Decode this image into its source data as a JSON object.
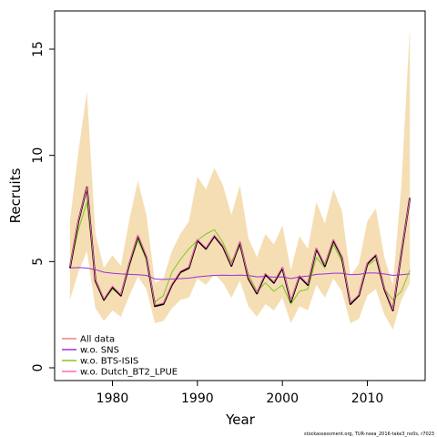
{
  "chart_data": {
    "type": "line",
    "xlabel": "Year",
    "ylabel": "Recruits",
    "xlim": [
      1973.2,
      2016.8
    ],
    "ylim": [
      -0.6,
      16.8
    ],
    "xticks": [
      1980,
      1990,
      2000,
      2010
    ],
    "yticks": [
      0,
      5,
      10,
      15
    ],
    "legend_position": "bottom-left",
    "footnote": "stockassessment.org, TUR-nsea_2016-take3_no0s, r7023",
    "colors": {
      "band": "#f5deb3",
      "all_data": "#000000",
      "w_o_sns": "#9b30d9",
      "w_o_bts_isis": "#7ec820",
      "w_o_dutch": "#ff69b4",
      "legend_all_data": "#f08080"
    },
    "x": [
      1975,
      1976,
      1977,
      1978,
      1979,
      1980,
      1981,
      1982,
      1983,
      1984,
      1985,
      1986,
      1987,
      1988,
      1989,
      1990,
      1991,
      1992,
      1993,
      1994,
      1995,
      1996,
      1997,
      1998,
      1999,
      2000,
      2001,
      2002,
      2003,
      2004,
      2005,
      2006,
      2007,
      2008,
      2009,
      2010,
      2011,
      2012,
      2013,
      2014,
      2015
    ],
    "series": [
      {
        "name": "All data",
        "key": "all_data",
        "values": [
          4.7,
          6.9,
          8.5,
          4.1,
          3.2,
          3.8,
          3.4,
          4.9,
          6.2,
          5.2,
          2.9,
          3.0,
          3.9,
          4.5,
          4.7,
          6.0,
          5.6,
          6.2,
          5.7,
          4.8,
          5.9,
          4.2,
          3.5,
          4.4,
          4.0,
          4.7,
          3.1,
          4.3,
          3.9,
          5.6,
          4.8,
          6.0,
          5.2,
          3.0,
          3.4,
          4.9,
          5.3,
          3.7,
          2.7,
          5.4,
          8.0
        ]
      },
      {
        "name": "w.o. SNS",
        "key": "w_o_sns",
        "values": [
          4.7,
          4.72,
          4.7,
          4.62,
          4.5,
          4.45,
          4.42,
          4.4,
          4.38,
          4.35,
          4.18,
          4.16,
          4.18,
          4.2,
          4.22,
          4.28,
          4.32,
          4.35,
          4.36,
          4.35,
          4.36,
          4.35,
          4.28,
          4.3,
          4.27,
          4.28,
          4.2,
          4.28,
          4.32,
          4.4,
          4.42,
          4.45,
          4.45,
          4.38,
          4.4,
          4.46,
          4.46,
          4.42,
          4.35,
          4.38,
          4.42
        ]
      },
      {
        "name": "w.o. BTS-ISIS",
        "key": "w_o_bts_isis",
        "values": [
          4.7,
          6.5,
          7.8,
          4.2,
          3.2,
          3.7,
          3.4,
          4.8,
          6.0,
          5.1,
          3.1,
          3.4,
          4.5,
          5.1,
          5.6,
          6.0,
          6.3,
          6.5,
          5.9,
          5.0,
          5.7,
          4.4,
          3.6,
          4.0,
          3.6,
          3.9,
          3.0,
          3.6,
          3.7,
          5.2,
          4.7,
          5.8,
          5.0,
          3.1,
          3.4,
          4.8,
          5.1,
          3.7,
          3.2,
          3.6,
          4.6
        ]
      },
      {
        "name": "w.o. Dutch_BT2_LPUE",
        "key": "w_o_dutch",
        "values": [
          4.75,
          6.95,
          8.5,
          4.15,
          3.25,
          3.85,
          3.45,
          4.95,
          6.25,
          5.25,
          2.95,
          3.05,
          3.95,
          4.55,
          4.75,
          6.05,
          5.65,
          6.25,
          5.75,
          4.85,
          5.95,
          4.25,
          3.55,
          4.45,
          4.05,
          4.75,
          3.15,
          4.35,
          3.95,
          5.65,
          4.85,
          6.05,
          5.25,
          3.05,
          3.45,
          4.95,
          5.35,
          3.75,
          2.75,
          5.45,
          8.0
        ]
      }
    ],
    "band": {
      "name": "confidence interval",
      "lower": [
        3.2,
        4.5,
        5.5,
        2.8,
        2.2,
        2.7,
        2.4,
        3.4,
        4.3,
        3.7,
        2.1,
        2.2,
        2.8,
        3.2,
        3.3,
        4.2,
        3.9,
        4.4,
        4.0,
        3.3,
        4.1,
        2.9,
        2.4,
        3.0,
        2.7,
        3.3,
        2.1,
        2.9,
        2.7,
        3.9,
        3.3,
        4.2,
        3.6,
        2.1,
        2.3,
        3.4,
        3.7,
        2.5,
        1.8,
        3.2,
        4.0
      ],
      "upper": [
        6.9,
        10.2,
        13.0,
        6.3,
        4.7,
        5.3,
        4.8,
        7.0,
        8.8,
        7.2,
        4.0,
        4.2,
        5.5,
        6.3,
        6.9,
        9.0,
        8.4,
        9.4,
        8.6,
        7.2,
        8.6,
        6.1,
        5.2,
        6.3,
        5.8,
        6.7,
        4.6,
        6.2,
        5.6,
        7.8,
        6.8,
        8.4,
        7.4,
        4.3,
        4.9,
        6.9,
        7.5,
        5.2,
        3.9,
        8.6,
        16.0
      ]
    },
    "legend": [
      "All data",
      "w.o. SNS",
      "w.o. BTS-ISIS",
      "w.o. Dutch_BT2_LPUE"
    ]
  }
}
